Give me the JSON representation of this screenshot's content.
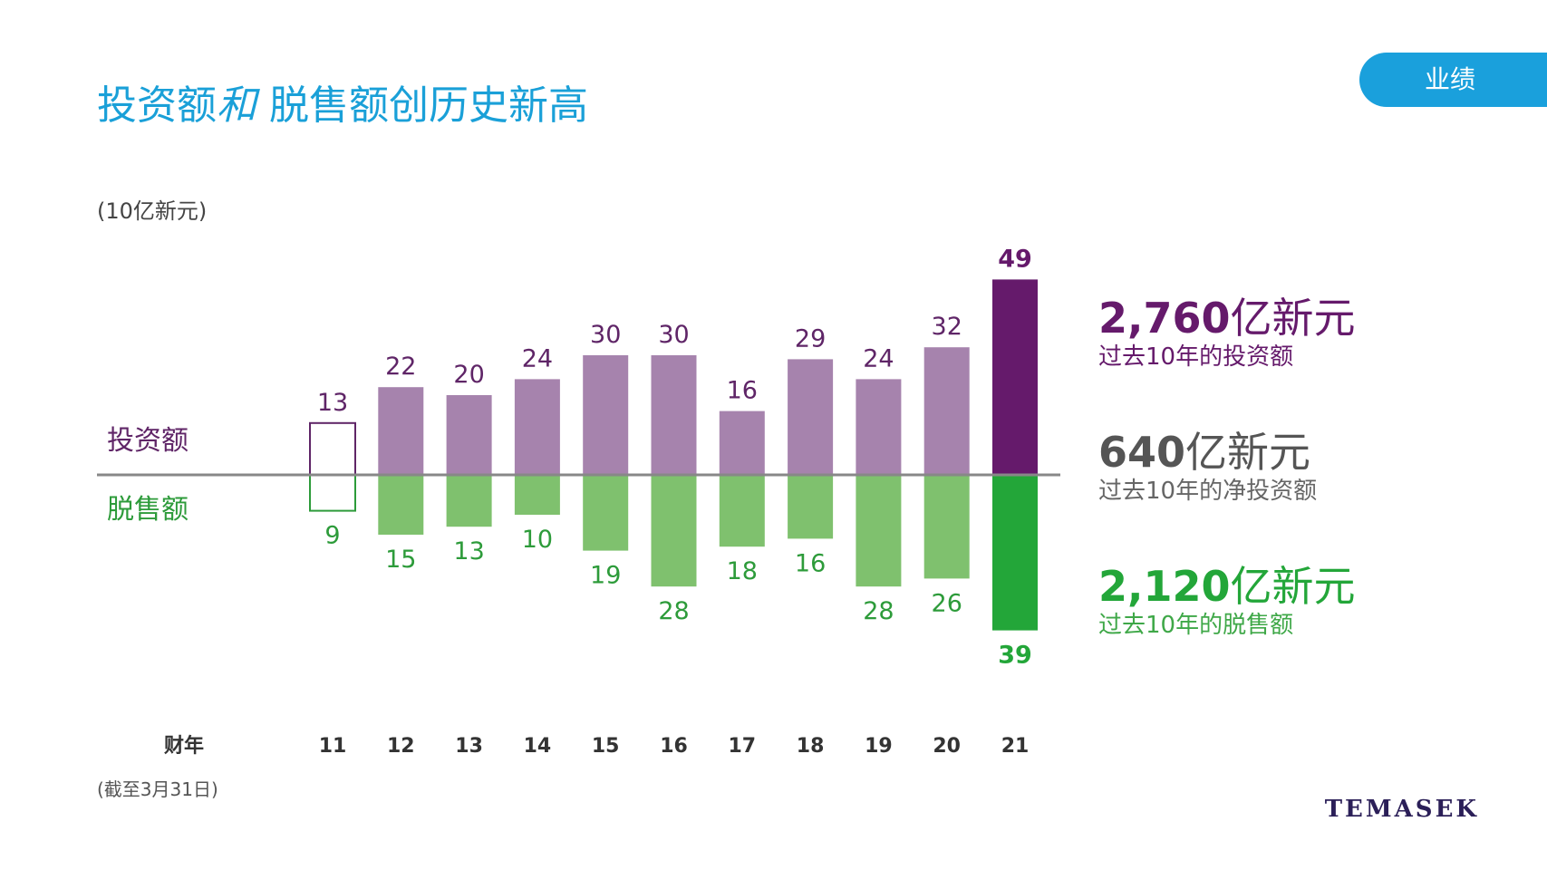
{
  "header": {
    "title_part1": "投资额",
    "title_italic": "和",
    "title_part2": " 脱售额创历史新高",
    "tab_label": "业绩"
  },
  "unit_label": "(10亿新元)",
  "footnote": "(截至3月31日)",
  "brand": "TEMASEK",
  "legend": {
    "investment_label": "投资额",
    "divestment_label": "脱售额",
    "x_axis_label": "财年"
  },
  "colors": {
    "investment": "#a683ad",
    "investment_latest": "#651a6b",
    "divestment": "#7fc16e",
    "divestment_latest": "#23a639",
    "investment_text": "#5f2567",
    "divestment_text": "#2d9b3a",
    "axis": "#888888"
  },
  "summary": [
    {
      "value": "2,760",
      "suffix": "亿新元",
      "caption": "过去10年的投资额"
    },
    {
      "value": "640",
      "suffix": "亿新元",
      "caption": "过去10年的净投资额"
    },
    {
      "value": "2,120",
      "suffix": "亿新元",
      "caption": "过去10年的脱售额"
    }
  ],
  "chart_data": {
    "type": "bar",
    "xlabel": "财年",
    "ylabel": "(10亿新元)",
    "categories": [
      "11",
      "12",
      "13",
      "14",
      "15",
      "16",
      "17",
      "18",
      "19",
      "20",
      "21"
    ],
    "series": [
      {
        "name": "投资额",
        "values": [
          13,
          22,
          20,
          24,
          30,
          30,
          16,
          29,
          24,
          32,
          49
        ],
        "direction": "up"
      },
      {
        "name": "脱售额",
        "values": [
          9,
          15,
          13,
          10,
          19,
          28,
          18,
          16,
          28,
          26,
          39
        ],
        "direction": "down"
      }
    ],
    "styles": {
      "first_bar": "outline",
      "last_bar": "dark-highlight",
      "last_bar_labels_bold": true
    },
    "grid": false
  }
}
